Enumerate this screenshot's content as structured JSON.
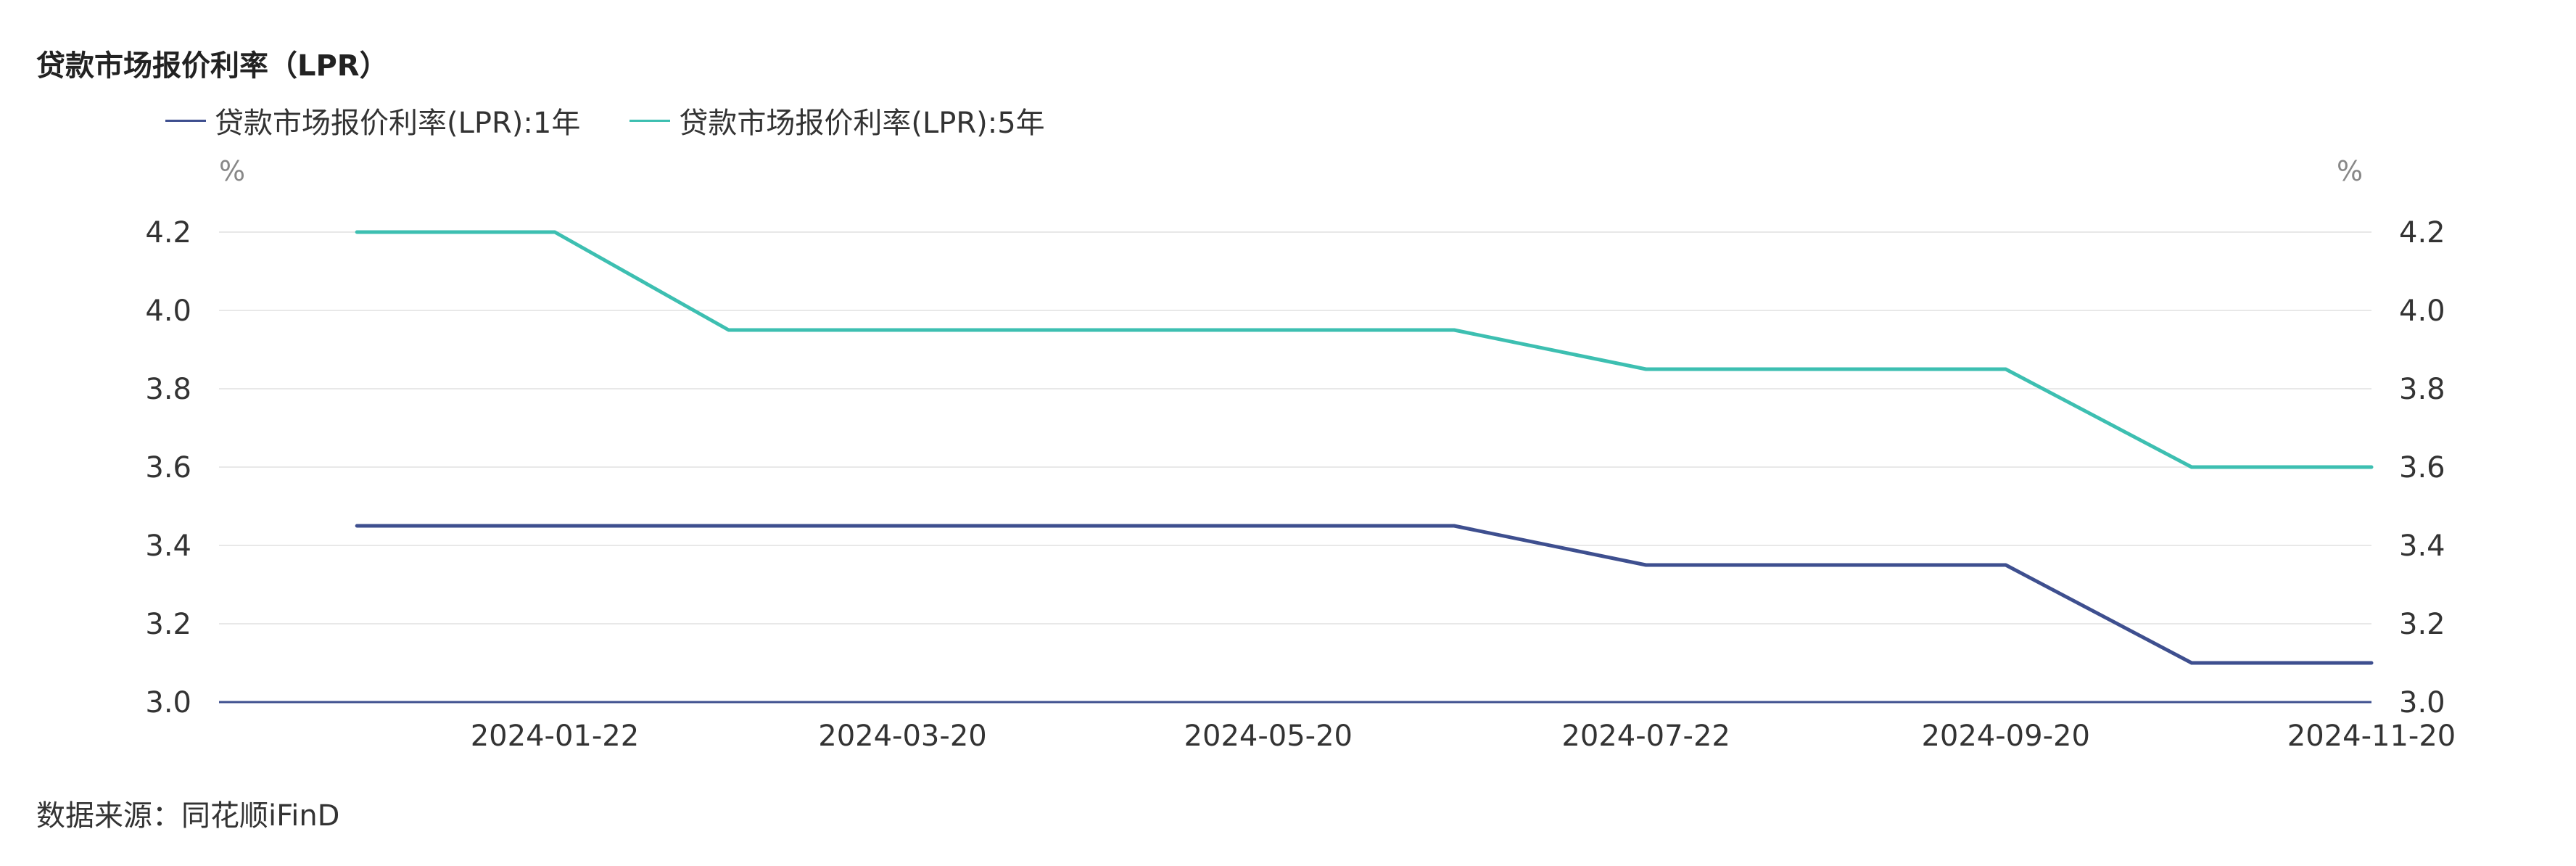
{
  "chart_title": "贷款市场报价利率（LPR）",
  "source": "数据来源：同花顺iFinD",
  "chart_data": {
    "type": "line",
    "title": "贷款市场报价利率（LPR）",
    "y_unit_left": "%",
    "y_unit_right": "%",
    "ylim": [
      3.0,
      4.2
    ],
    "yticks": [
      "3.0",
      "3.2",
      "3.4",
      "3.6",
      "3.8",
      "4.0",
      "4.2"
    ],
    "xticks": [
      "2024-01-22",
      "2024-03-20",
      "2024-05-20",
      "2024-07-22",
      "2024-09-20",
      "2024-11-20"
    ],
    "x": [
      "2023-12-20",
      "2024-01-22",
      "2024-02-20",
      "2024-03-20",
      "2024-04-22",
      "2024-05-20",
      "2024-06-20",
      "2024-07-22",
      "2024-08-20",
      "2024-09-20",
      "2024-10-21",
      "2024-11-20"
    ],
    "series": [
      {
        "name": "贷款市场报价利率(LPR):1年",
        "color": "#3e4f8f",
        "values": [
          3.45,
          3.45,
          3.45,
          3.45,
          3.45,
          3.45,
          3.45,
          3.35,
          3.35,
          3.35,
          3.1,
          3.1
        ]
      },
      {
        "name": "贷款市场报价利率(LPR):5年",
        "color": "#3dbfb1",
        "values": [
          4.2,
          4.2,
          3.95,
          3.95,
          3.95,
          3.95,
          3.95,
          3.85,
          3.85,
          3.85,
          3.6,
          3.6
        ]
      }
    ],
    "grid": true,
    "legend_position": "top-left"
  }
}
